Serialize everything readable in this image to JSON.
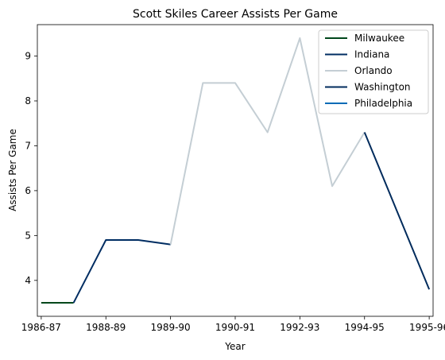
{
  "chart_data": {
    "type": "line",
    "title": "Scott Skiles Career Assists Per Game",
    "xlabel": "Year",
    "ylabel": "Assists Per Game",
    "x_tick_labels": [
      "1986-87",
      "1988-89",
      "1989-90",
      "1990-91",
      "1992-93",
      "1994-95",
      "1995-96"
    ],
    "x_tick_positions": [
      0,
      1,
      2,
      3,
      4,
      5,
      6
    ],
    "xlim": [
      -0.06,
      6.06
    ],
    "y_ticks": [
      4,
      5,
      6,
      7,
      8,
      9
    ],
    "ylim": [
      3.2,
      9.7
    ],
    "grid": false,
    "legend_position": "top-right",
    "series": [
      {
        "name": "Milwaukee",
        "color": "#00471b",
        "x": [
          0,
          0.5
        ],
        "y": [
          3.5,
          3.5
        ]
      },
      {
        "name": "Indiana",
        "color": "#002d62",
        "x": [
          0.5,
          1.0,
          1.5,
          2.0
        ],
        "y": [
          3.5,
          4.9,
          4.9,
          4.8
        ]
      },
      {
        "name": "Orlando",
        "color": "#c4ced4",
        "x": [
          2.0,
          2.5,
          3.0,
          3.5,
          4.0,
          4.5,
          5.0
        ],
        "y": [
          4.8,
          8.4,
          8.4,
          7.3,
          9.4,
          6.1,
          7.3
        ]
      },
      {
        "name": "Washington",
        "color": "#002b5c",
        "x": [
          5.0,
          5.5,
          6.0
        ],
        "y": [
          7.3,
          5.55,
          3.8
        ]
      },
      {
        "name": "Philadelphia",
        "color": "#006bb6",
        "x": [],
        "y": []
      }
    ]
  }
}
